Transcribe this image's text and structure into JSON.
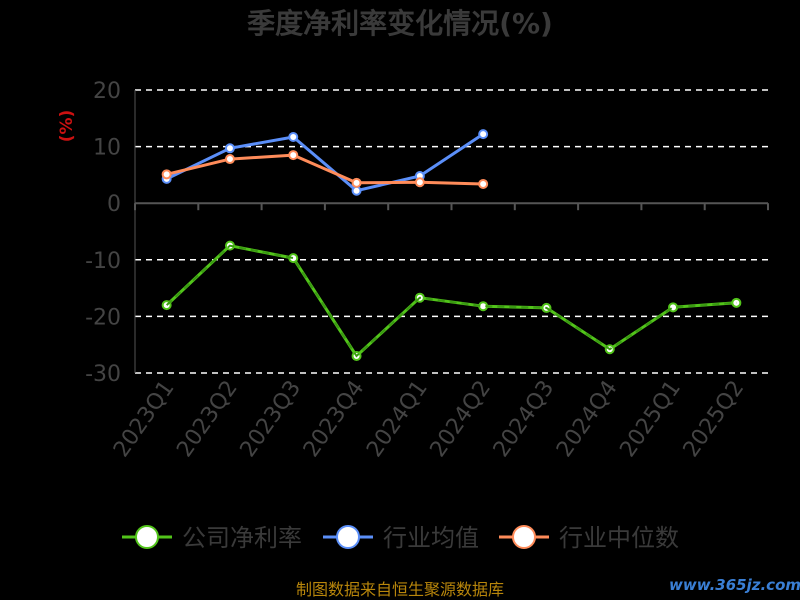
{
  "chart_data": {
    "type": "line",
    "title": "季度净利率变化情况(%)",
    "ylabel": "(%)",
    "xlabel": "",
    "ylim": [
      -30,
      20
    ],
    "yticks": [
      20,
      10,
      0,
      -10,
      -20,
      -30
    ],
    "grid": true,
    "legend_position": "bottom",
    "categories": [
      "2023Q1",
      "2023Q2",
      "2023Q3",
      "2023Q4",
      "2024Q1",
      "2024Q2",
      "2024Q3",
      "2024Q4",
      "2025Q1",
      "2025Q2"
    ],
    "series": [
      {
        "name": "公司净利率",
        "color": "#52c41a",
        "values": [
          -18.0,
          -7.5,
          -9.7,
          -27.0,
          -16.7,
          -18.2,
          -18.5,
          -25.8,
          -18.4,
          -17.6
        ]
      },
      {
        "name": "行业均值",
        "color": "#5b8ff9",
        "values": [
          4.3,
          9.7,
          11.7,
          2.2,
          4.8,
          12.2,
          null,
          null,
          null,
          null
        ]
      },
      {
        "name": "行业中位数",
        "color": "#ff8c5a",
        "values": [
          5.1,
          7.8,
          8.5,
          3.6,
          3.7,
          3.4,
          null,
          null,
          null,
          null
        ]
      }
    ]
  },
  "footer": {
    "source": "制图数据来自恒生聚源数据库",
    "watermark": "www.365jz.com"
  }
}
